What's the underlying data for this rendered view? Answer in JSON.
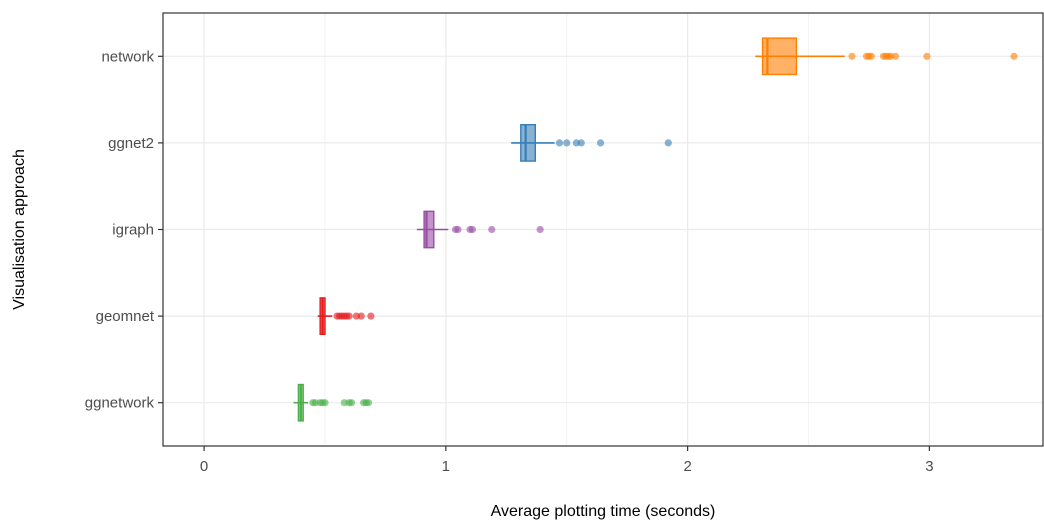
{
  "chart_data": {
    "type": "boxplot",
    "title": "",
    "xlabel": "Average plotting time (seconds)",
    "ylabel": "Visualisation approach",
    "xlim": [
      -0.17,
      3.47
    ],
    "x_ticks": [
      0,
      1,
      2,
      3
    ],
    "x_tick_labels": [
      "0",
      "1",
      "2",
      "3"
    ],
    "grid": true,
    "legend": "none",
    "categories": [
      "network",
      "ggnet2",
      "igraph",
      "geomnet",
      "ggnetwork"
    ],
    "series": [
      {
        "category": "network",
        "color": "#ff7f00",
        "min": 2.28,
        "q1": 2.31,
        "median": 2.33,
        "q3": 2.45,
        "max": 2.65,
        "outliers": [
          2.68,
          2.74,
          2.75,
          2.76,
          2.81,
          2.82,
          2.83,
          2.84,
          2.86,
          2.99,
          3.35
        ]
      },
      {
        "category": "ggnet2",
        "color": "#377eb8",
        "min": 1.27,
        "q1": 1.31,
        "median": 1.33,
        "q3": 1.37,
        "max": 1.45,
        "outliers": [
          1.47,
          1.5,
          1.54,
          1.56,
          1.64,
          1.92
        ]
      },
      {
        "category": "igraph",
        "color": "#984ea3",
        "min": 0.88,
        "q1": 0.91,
        "median": 0.92,
        "q3": 0.95,
        "max": 1.01,
        "outliers": [
          1.04,
          1.05,
          1.1,
          1.11,
          1.19,
          1.39
        ]
      },
      {
        "category": "geomnet",
        "color": "#e41a1c",
        "min": 0.47,
        "q1": 0.48,
        "median": 0.49,
        "q3": 0.5,
        "max": 0.53,
        "outliers": [
          0.55,
          0.56,
          0.57,
          0.58,
          0.59,
          0.6,
          0.63,
          0.65,
          0.69
        ]
      },
      {
        "category": "ggnetwork",
        "color": "#4daf4a",
        "min": 0.37,
        "q1": 0.39,
        "median": 0.4,
        "q3": 0.41,
        "max": 0.43,
        "outliers": [
          0.45,
          0.46,
          0.48,
          0.49,
          0.5,
          0.58,
          0.6,
          0.61,
          0.66,
          0.67,
          0.68
        ]
      }
    ]
  }
}
